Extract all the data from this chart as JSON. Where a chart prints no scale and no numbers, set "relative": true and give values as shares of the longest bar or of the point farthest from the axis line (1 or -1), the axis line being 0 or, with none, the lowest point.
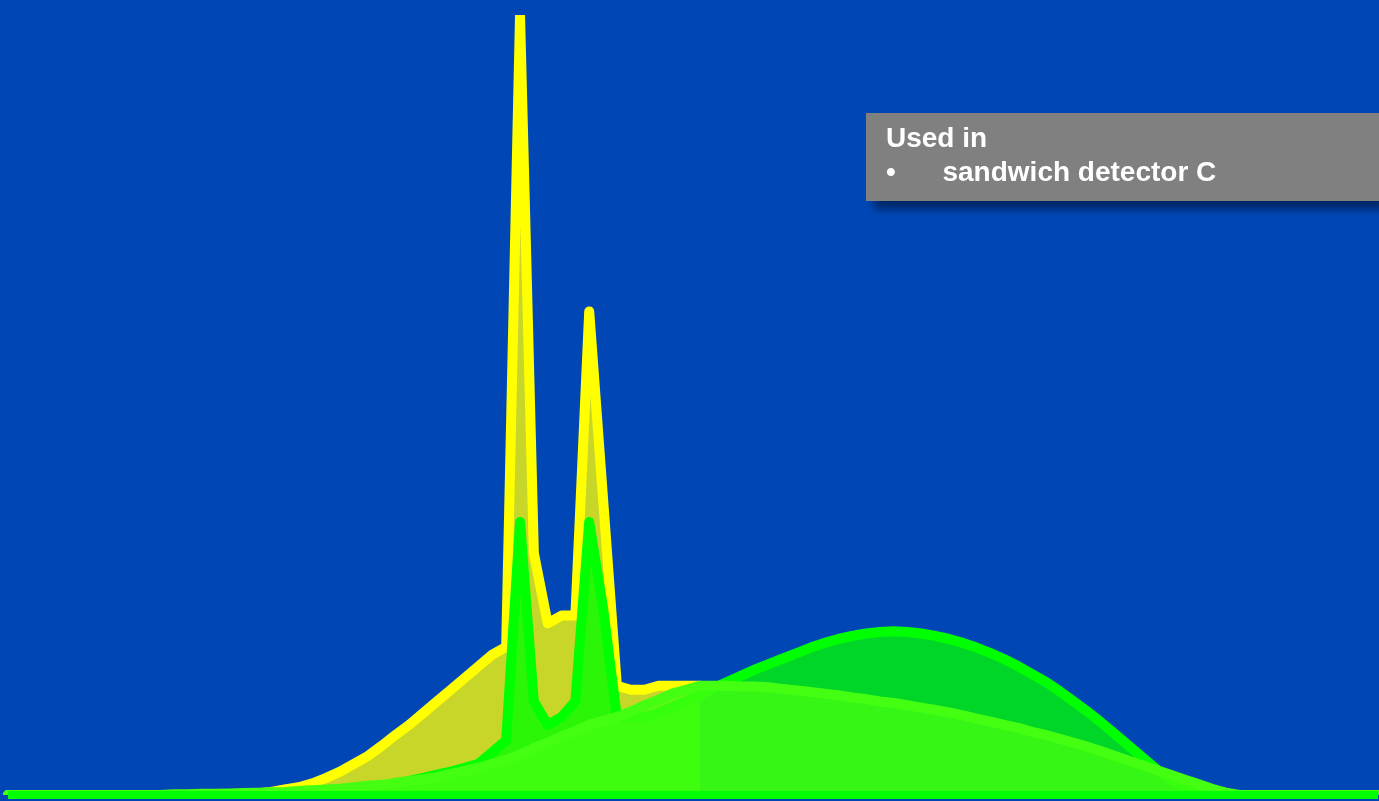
{
  "chart_data": {
    "type": "area",
    "relative": true,
    "annotations": [
      "Used in",
      "•      sandwich detector C"
    ],
    "categories": [
      null,
      null,
      null,
      null,
      null,
      null,
      null,
      null,
      null,
      null,
      null,
      null,
      null,
      null,
      null,
      null,
      null,
      null,
      null,
      null,
      null,
      null,
      null,
      null,
      null,
      null,
      null,
      null,
      null,
      null,
      null,
      null,
      null,
      null,
      null,
      null,
      null,
      null,
      null,
      null,
      null,
      null,
      null,
      null,
      null,
      null,
      null,
      null,
      null,
      null,
      null,
      null,
      null,
      null,
      null,
      null,
      null,
      null,
      null,
      null,
      null,
      null,
      null,
      null,
      null,
      null,
      null,
      null,
      null,
      null,
      null,
      null,
      null,
      null,
      null,
      null,
      null,
      null,
      null,
      null,
      null,
      null,
      null,
      null,
      null,
      null,
      null,
      null,
      null,
      null,
      null,
      null,
      null,
      null,
      null,
      null,
      null,
      null,
      null,
      null
    ],
    "series": [
      {
        "color": "#ffff00",
        "values": [
          0,
          0,
          0,
          0,
          0,
          0,
          0,
          0,
          0,
          0,
          0,
          0,
          0,
          0,
          0,
          0,
          0,
          0,
          0.002,
          0.004,
          0.007,
          0.01,
          0.015,
          0.022,
          0.03,
          0.04,
          0.05,
          0.063,
          0.077,
          0.09,
          0.105,
          0.12,
          0.135,
          0.15,
          0.165,
          0.18,
          0.19,
          1,
          0.31,
          0.22,
          0.23,
          0.23,
          0.62,
          0.38,
          0.14,
          0.135,
          0.135,
          0.14,
          0.14,
          0.14,
          0.14,
          null,
          null,
          null,
          null,
          null,
          null,
          null,
          null,
          null,
          null,
          null,
          null,
          null,
          null,
          null,
          null,
          null,
          null,
          null,
          null,
          null,
          null,
          null,
          null,
          null,
          null,
          null,
          null,
          null,
          null,
          null,
          null,
          null,
          null,
          null,
          null,
          null,
          null,
          null,
          null,
          null,
          null,
          null,
          null,
          null,
          null,
          null,
          null,
          null
        ]
      },
      {
        "color": "#00ff00",
        "values": [
          0,
          0,
          0,
          0,
          0,
          0,
          0,
          0,
          0,
          0,
          0,
          0,
          0,
          0,
          0,
          0,
          0,
          0,
          0.001,
          0.001,
          0.002,
          0.003,
          0.004,
          0.005,
          0.006,
          0.008,
          0.01,
          0.012,
          0.015,
          0.018,
          0.022,
          0.026,
          0.03,
          0.035,
          0.04,
          0.055,
          0.07,
          0.35,
          0.12,
          0.09,
          0.1,
          0.12,
          0.35,
          0.24,
          0.1,
          0.1,
          0.1,
          0.105,
          0.113,
          0.12,
          0.128,
          0.137,
          0.145,
          0.153,
          0.161,
          0.168,
          0.175,
          0.182,
          0.189,
          0.195,
          0.2,
          0.204,
          0.207,
          0.209,
          0.21,
          0.209,
          0.207,
          0.204,
          0.2,
          0.195,
          0.189,
          0.182,
          0.174,
          0.165,
          0.155,
          0.145,
          0.133,
          0.12,
          0.107,
          0.093,
          0.078,
          0.063,
          0.048,
          0.033,
          0.02,
          0.01,
          0.004,
          0,
          0,
          0,
          0,
          0,
          0,
          0,
          0,
          0,
          0,
          0,
          0,
          0
        ]
      },
      {
        "color": "#44ff11",
        "values": [
          0,
          0,
          0,
          0,
          0,
          0,
          0,
          0,
          0,
          0,
          0,
          0,
          0.001,
          0.001,
          0.0015,
          0.0015,
          0.002,
          0.0025,
          0.003,
          0.0035,
          0.004,
          0.005,
          0.006,
          0.007,
          0.008,
          0.01,
          0.012,
          0.013,
          0.015,
          0.018,
          0.02,
          0.023,
          0.027,
          0.031,
          0.035,
          0.04,
          0.045,
          0.052,
          0.06,
          0.067,
          0.075,
          0.082,
          0.09,
          0.095,
          0.1,
          0.107,
          0.115,
          0.122,
          0.13,
          0.135,
          0.14,
          0.14,
          0.14,
          0.139,
          0.139,
          0.138,
          0.136,
          0.134,
          0.132,
          0.13,
          0.128,
          0.125,
          0.123,
          0.12,
          0.118,
          0.115,
          0.112,
          0.109,
          0.106,
          0.102,
          0.098,
          0.094,
          0.09,
          0.086,
          0.081,
          0.077,
          0.072,
          0.067,
          0.062,
          0.056,
          0.05,
          0.044,
          0.038,
          0.032,
          0.026,
          0.02,
          0.014,
          0.008,
          0.003,
          0,
          0,
          0,
          0,
          0,
          0,
          0,
          0,
          0,
          0,
          0
        ]
      }
    ]
  }
}
